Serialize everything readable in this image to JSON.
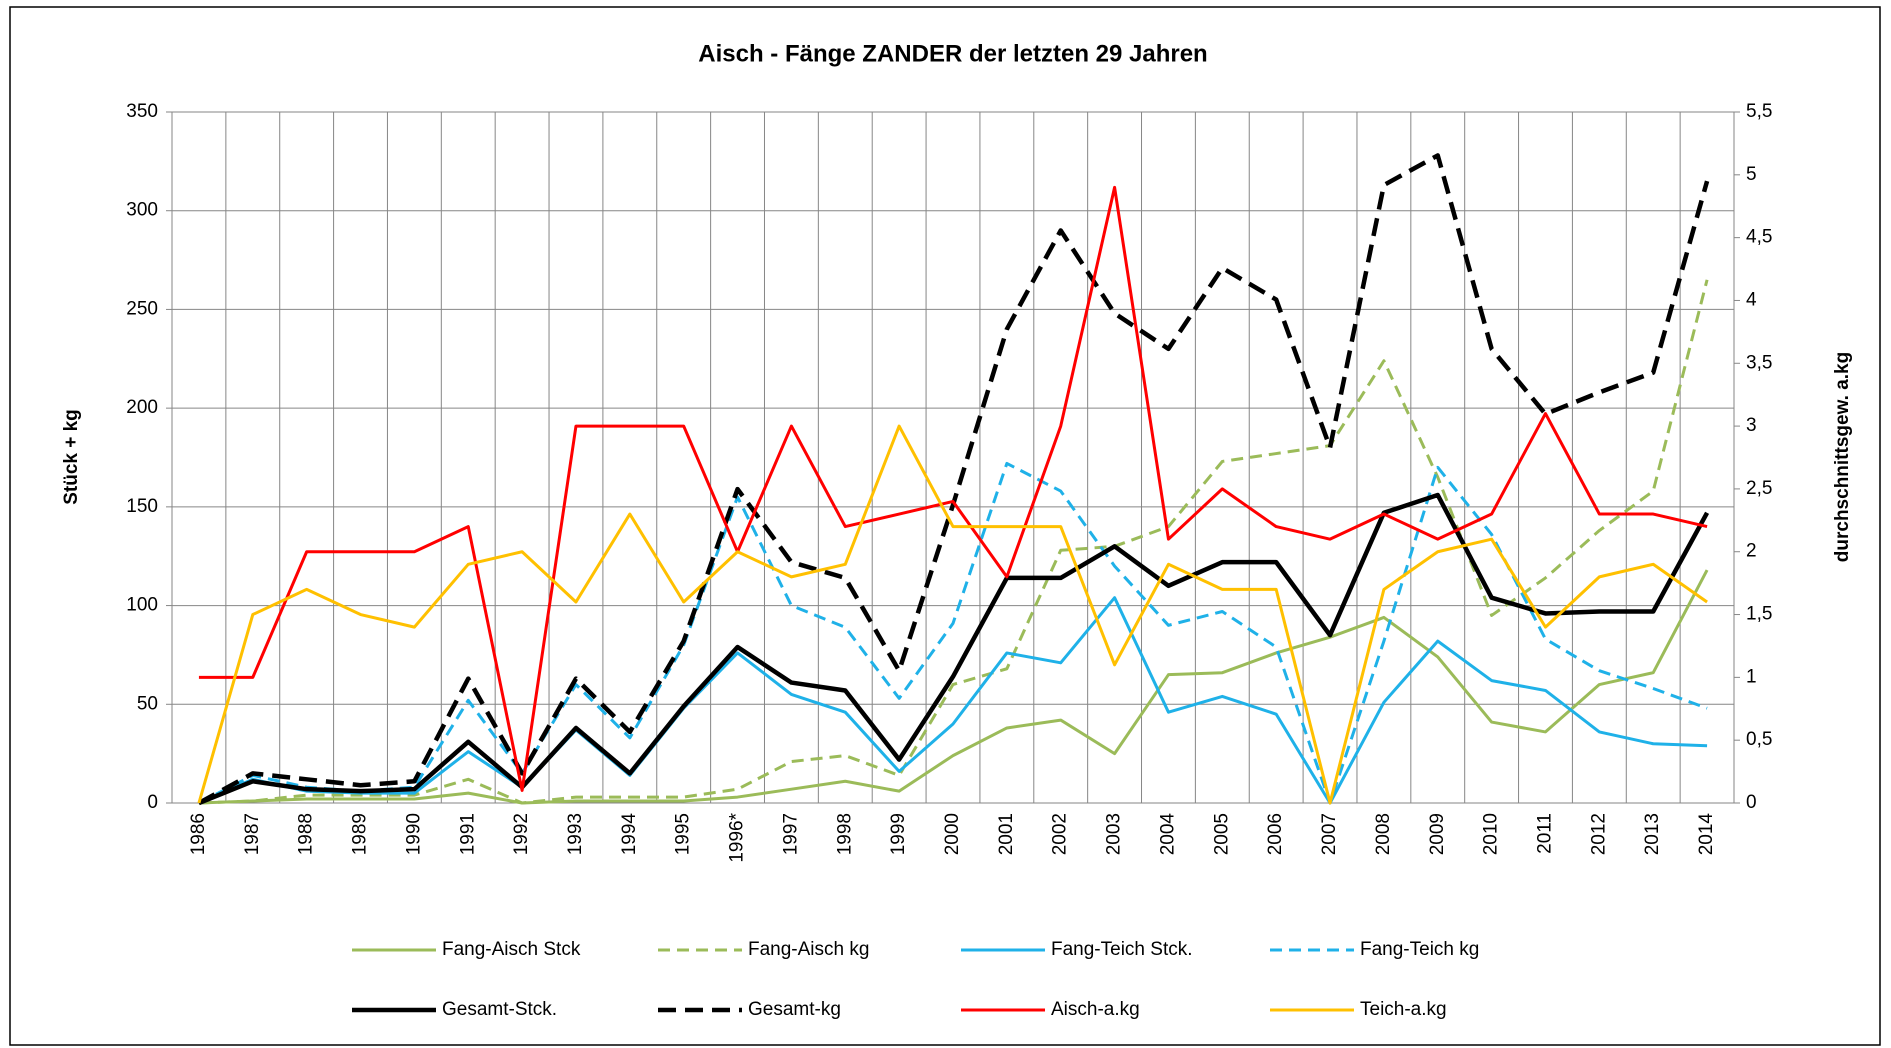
{
  "chart_data": {
    "type": "line",
    "title": "Aisch - Fänge ZANDER der letzten 29 Jahren",
    "y_label": "Stück + kg",
    "y2_label": "durchschnittsgew. a.kg",
    "categories": [
      "1986",
      "1987",
      "1988",
      "1989",
      "1990",
      "1991",
      "1992",
      "1993",
      "1994",
      "1995",
      "1996*",
      "1997",
      "1998",
      "1999",
      "2000",
      "2001",
      "2002",
      "2003",
      "2004",
      "2005",
      "2006",
      "2007",
      "2008",
      "2009",
      "2010",
      "2011",
      "2012",
      "2013",
      "2014"
    ],
    "ylim": [
      0,
      350
    ],
    "yticks": [
      0,
      50,
      100,
      150,
      200,
      250,
      300,
      350
    ],
    "y2lim": [
      0,
      5.5
    ],
    "y2ticks": [
      0,
      {
        "value": 0.5,
        "label": "0,5"
      },
      1,
      {
        "value": 1.5,
        "label": "1,5"
      },
      2,
      {
        "value": 2.5,
        "label": "2,5"
      },
      3,
      {
        "value": 3.5,
        "label": "3,5"
      },
      4,
      {
        "value": 4.5,
        "label": "4,5"
      },
      5,
      {
        "value": 5.5,
        "label": "5,5"
      }
    ],
    "grid": true,
    "legend": "bottom",
    "series": [
      {
        "name": "Fang-Aisch Stck",
        "color": "#9bbb59",
        "line_style": "solid",
        "values": [
          0,
          1,
          2,
          2,
          2,
          5,
          0,
          1,
          1,
          1,
          3,
          7,
          11,
          6,
          24,
          38,
          42,
          25,
          65,
          66,
          76,
          84,
          94,
          74,
          41,
          36,
          60,
          66,
          118
        ]
      },
      {
        "name": "Fang-Aisch kg",
        "color": "#9bbb59",
        "line_style": "dashed",
        "values": [
          0,
          1,
          4,
          4,
          4,
          12,
          0,
          3,
          3,
          3,
          7,
          21,
          24,
          14,
          60,
          68,
          128,
          130,
          140,
          173,
          177,
          181,
          224,
          165,
          95,
          114,
          138,
          158,
          265
        ]
      },
      {
        "name": "Fang-Teich Stck.",
        "color": "#1fb1e8",
        "line_style": "solid",
        "values": [
          0,
          12,
          6,
          5,
          5,
          26,
          8,
          37,
          14,
          48,
          76,
          55,
          46,
          16,
          40,
          76,
          71,
          104,
          46,
          54,
          45,
          0,
          51,
          82,
          62,
          57,
          36,
          30,
          29
        ]
      },
      {
        "name": "Fang-Teich kg",
        "color": "#1fb1e8",
        "line_style": "dashed",
        "values": [
          0,
          14,
          8,
          6,
          8,
          52,
          15,
          60,
          33,
          80,
          155,
          100,
          89,
          53,
          91,
          172,
          158,
          120,
          90,
          97,
          79,
          0,
          82,
          170,
          136,
          83,
          67,
          58,
          48
        ]
      },
      {
        "name": "Gesamt-Stck.",
        "color": "#000000",
        "line_style": "solid",
        "values": [
          0,
          11,
          7,
          6,
          7,
          31,
          8,
          38,
          15,
          49,
          79,
          61,
          57,
          22,
          64,
          114,
          114,
          130,
          110,
          122,
          122,
          85,
          147,
          156,
          104,
          96,
          97,
          97,
          147
        ]
      },
      {
        "name": "Gesamt-kg",
        "color": "#000000",
        "line_style": "dashed",
        "values": [
          0,
          15,
          12,
          9,
          11,
          63,
          15,
          63,
          36,
          82,
          159,
          122,
          114,
          67,
          151,
          240,
          290,
          248,
          230,
          271,
          255,
          180,
          313,
          328,
          230,
          197,
          208,
          218,
          315
        ]
      },
      {
        "name": "Aisch-a.kg",
        "color": "#ff0000",
        "line_style": "solid",
        "axis": "y2",
        "values": [
          1.0,
          1.0,
          2.0,
          2.0,
          2.0,
          2.2,
          0.1,
          3.0,
          3.0,
          3.0,
          2.0,
          3.0,
          2.2,
          2.3,
          2.4,
          1.8,
          3.0,
          4.9,
          2.1,
          2.5,
          2.2,
          2.1,
          2.3,
          2.1,
          2.3,
          3.1,
          2.3,
          2.3,
          2.2
        ]
      },
      {
        "name": "Teich-a.kg",
        "color": "#ffc000",
        "line_style": "solid",
        "axis": "y2",
        "values": [
          0,
          1.5,
          1.7,
          1.5,
          1.4,
          1.9,
          2.0,
          1.6,
          2.3,
          1.6,
          2.0,
          1.8,
          1.9,
          3.0,
          2.2,
          2.2,
          2.2,
          1.1,
          1.9,
          1.7,
          1.7,
          0,
          1.7,
          2.0,
          2.1,
          1.4,
          1.8,
          1.9,
          1.6
        ]
      }
    ]
  }
}
